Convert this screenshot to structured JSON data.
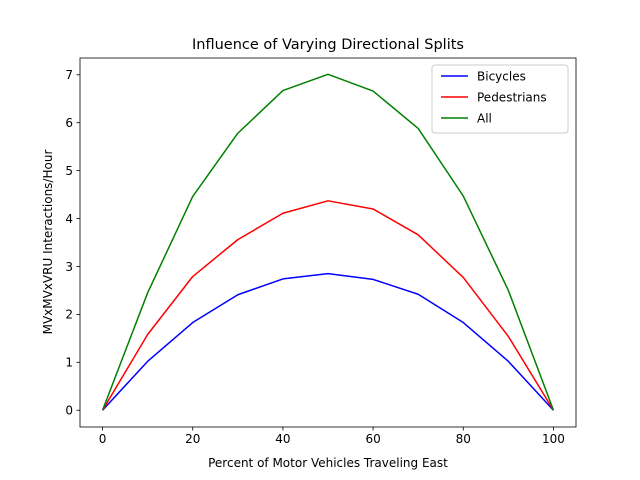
{
  "chart_data": {
    "type": "line",
    "title": "Influence of Varying Directional Splits",
    "xlabel": "Percent of Motor Vehicles Traveling East",
    "ylabel": "MVxMVxVRU Interactions/Hour",
    "x": [
      0,
      10,
      20,
      30,
      40,
      50,
      60,
      70,
      80,
      90,
      100
    ],
    "xlim": [
      -5,
      105
    ],
    "ylim": [
      -0.35,
      7.35
    ],
    "xticks": [
      0,
      20,
      40,
      60,
      80,
      100
    ],
    "yticks": [
      0,
      1,
      2,
      3,
      4,
      5,
      6,
      7
    ],
    "grid": false,
    "legend_position": "top-right",
    "series": [
      {
        "name": "Bicycles",
        "color": "#0000ff",
        "values": [
          0,
          1.02,
          1.83,
          2.41,
          2.74,
          2.85,
          2.73,
          2.42,
          1.83,
          1.02,
          0
        ]
      },
      {
        "name": "Pedestrians",
        "color": "#ff0000",
        "values": [
          0,
          1.58,
          2.79,
          3.56,
          4.11,
          4.37,
          4.2,
          3.66,
          2.77,
          1.54,
          0
        ]
      },
      {
        "name": "All",
        "color": "#008000",
        "values": [
          0,
          2.45,
          4.46,
          5.78,
          6.67,
          7.01,
          6.66,
          5.88,
          4.47,
          2.5,
          0
        ]
      }
    ]
  }
}
